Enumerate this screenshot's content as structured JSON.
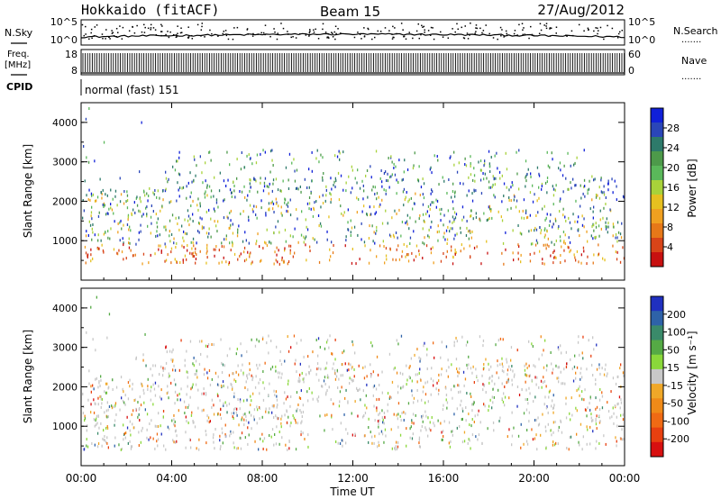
{
  "header": {
    "station": "Hokkaido (fitACF)",
    "beam": "Beam 15",
    "date": "27/Aug/2012"
  },
  "side_labels": {
    "nsky": "N.Sky",
    "freq_line1": "Freq.",
    "freq_line2": "[MHz]",
    "cpid": "CPID",
    "nsearch": "N.Search",
    "nave": "Nave",
    "dots": "......."
  },
  "cpid_text": "normal (fast) 151",
  "nsky_axis": {
    "ticks": [
      "10^5",
      "10^0"
    ]
  },
  "freq_axis": {
    "left_ticks": [
      "18",
      "8"
    ],
    "right_ticks": [
      "60",
      "0"
    ]
  },
  "panels": {
    "power": {
      "ylabel": "Slant Range [km]",
      "yticks": [
        "4000",
        "3000",
        "2000",
        "1000"
      ],
      "colorbar_label": "Power [dB]",
      "colorbar_ticks": [
        "28",
        "24",
        "20",
        "16",
        "12",
        "8",
        "4"
      ],
      "colors": [
        "#1020d8",
        "#2a46b8",
        "#2d7a6a",
        "#4d9a4a",
        "#5ab85a",
        "#a8d23a",
        "#e6c020",
        "#f0a020",
        "#e67818",
        "#d84418",
        "#c81010"
      ]
    },
    "velocity": {
      "ylabel": "Slant Range [km]",
      "yticks": [
        "4000",
        "3000",
        "2000",
        "1000"
      ],
      "colorbar_label": "Velocity [m s⁻¹]",
      "colorbar_ticks": [
        "200",
        "100",
        "50",
        "15",
        "-15",
        "-50",
        "-100",
        "-200"
      ],
      "colors": [
        "#2030c0",
        "#2e62a8",
        "#3a8a6a",
        "#55aa45",
        "#8ad83a",
        "#c8c8c8",
        "#f0a828",
        "#f08a18",
        "#f06a14",
        "#e84010",
        "#d81010"
      ]
    }
  },
  "xaxis": {
    "label": "Time UT",
    "ticks": [
      "00:00",
      "04:00",
      "08:00",
      "12:00",
      "16:00",
      "20:00",
      "00:00"
    ]
  },
  "chart_data": {
    "type": "heatmap",
    "title": "Hokkaido (fitACF) Beam 15 27/Aug/2012",
    "xlabel": "Time UT",
    "ylabel": "Slant Range [km]",
    "xlim": [
      "00:00",
      "24:00"
    ],
    "ylim": [
      0,
      4500
    ],
    "series": [
      {
        "name": "Power [dB]",
        "range": [
          0,
          30
        ]
      },
      {
        "name": "Velocity [m s⁻¹]",
        "range": [
          -200,
          200
        ]
      }
    ]
  }
}
